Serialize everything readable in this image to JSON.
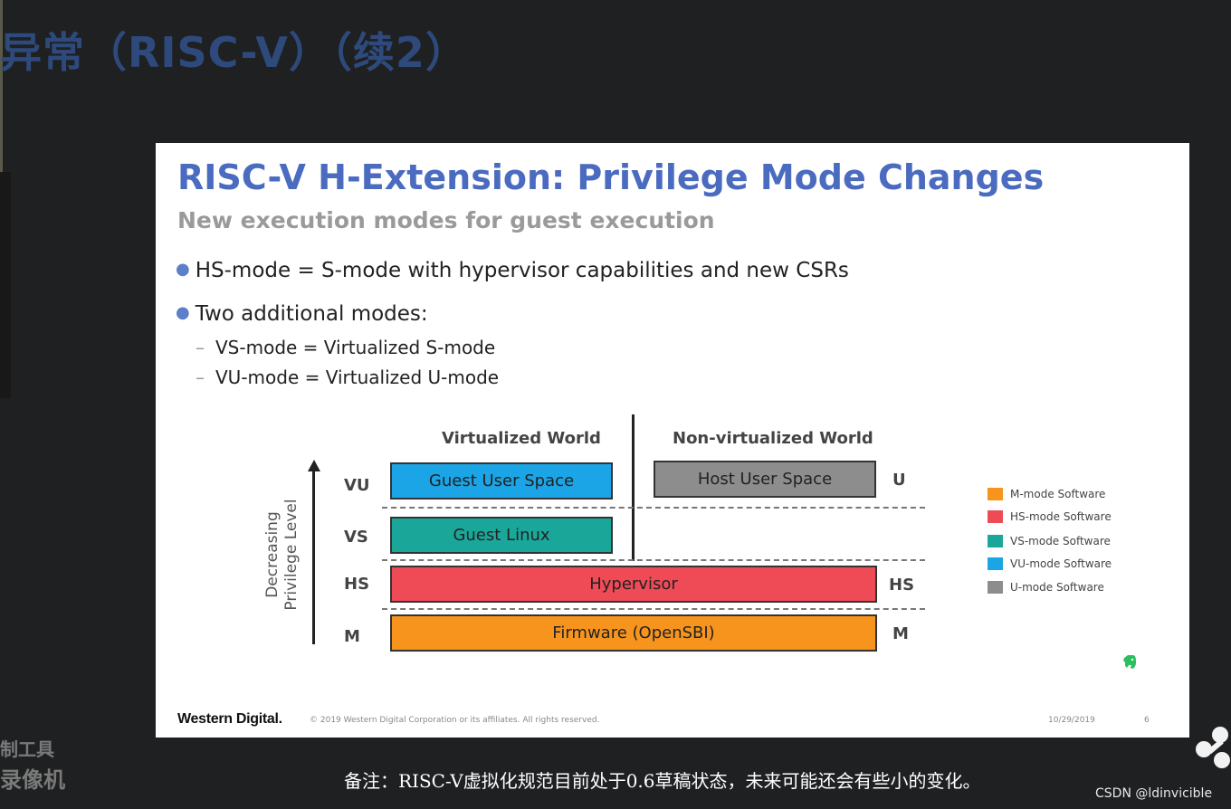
{
  "video": {
    "top_title": "异常（RISC-V）（续2）",
    "watermark": [
      "制工具",
      "录像机"
    ],
    "caption": "备注：RISC-V虚拟化规范目前处于0.6草稿状态，未来可能还会有些小的变化。",
    "credit": "CSDN @ldinvicible"
  },
  "slide": {
    "title": "RISC-V H-Extension: Privilege Mode Changes",
    "subtitle": "New execution modes for guest execution",
    "bullets": [
      {
        "text": "HS-mode = S-mode with hypervisor capabilities and new CSRs"
      },
      {
        "text": "Two additional modes:"
      }
    ],
    "sub_bullets": [
      {
        "dash": "–",
        "text": "VS-mode = Virtualized S-mode"
      },
      {
        "dash": "–",
        "text": "VU-mode = Virtualized U-mode"
      }
    ],
    "diagram": {
      "col_virtualized": "Virtualized World",
      "col_nonvirtualized": "Non-virtualized World",
      "axis_label_line1": "Decreasing",
      "axis_label_line2": "Privilege Level",
      "left_labels": {
        "vu": "VU",
        "vs": "VS",
        "hs": "HS",
        "m": "M"
      },
      "right_labels": {
        "u": "U",
        "hs": "HS",
        "m": "M"
      },
      "boxes": {
        "guest_user_space": "Guest User Space",
        "host_user_space": "Host User Space",
        "guest_linux": "Guest Linux",
        "hypervisor": "Hypervisor",
        "firmware": "Firmware (OpenSBI)"
      },
      "colors": {
        "m_mode": "#f7941d",
        "hs_mode": "#ef4b57",
        "vs_mode": "#1aa79a",
        "vu_mode": "#1ba5e6",
        "u_mode": "#8d8d8d"
      }
    },
    "legend": [
      {
        "label": "M-mode Software",
        "color": "#f7941d"
      },
      {
        "label": "HS-mode Software",
        "color": "#ef4b57"
      },
      {
        "label": "VS-mode Software",
        "color": "#1aa79a"
      },
      {
        "label": "VU-mode Software",
        "color": "#1ba5e6"
      },
      {
        "label": "U-mode Software",
        "color": "#8d8d8d"
      }
    ],
    "footer": {
      "brand": "Western Digital.",
      "copyright": "© 2019 Western Digital Corporation or its affiliates. All rights reserved.",
      "date": "10/29/2019",
      "page": "6"
    },
    "icons": {
      "evernote": "evernote-elephant-icon"
    }
  }
}
